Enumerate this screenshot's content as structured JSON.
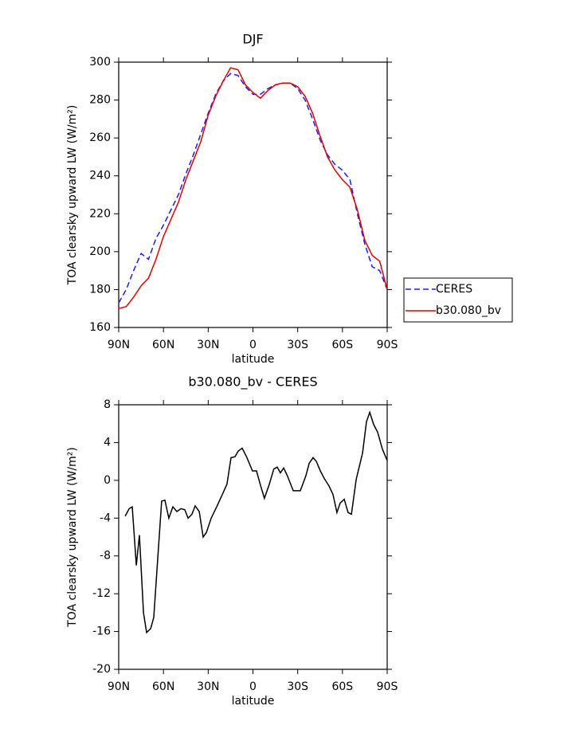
{
  "chart_data": [
    {
      "type": "line",
      "title": "DJF",
      "xlabel": "latitude",
      "ylabel": "TOA clearsky upward LW (W/m²)",
      "x": [
        90,
        85,
        80,
        75,
        70,
        65,
        60,
        55,
        50,
        45,
        40,
        35,
        30,
        25,
        20,
        15,
        10,
        5,
        0,
        -5,
        -10,
        -15,
        -20,
        -25,
        -30,
        -35,
        -40,
        -45,
        -50,
        -55,
        -60,
        -65,
        -70,
        -75,
        -80,
        -85,
        -90
      ],
      "series": [
        {
          "name": "CERES",
          "color": "#1a1aff",
          "line_style": "dashed",
          "values": [
            173,
            180,
            190,
            199,
            196,
            207,
            214,
            222,
            230,
            241,
            251,
            262,
            273,
            283,
            290,
            294,
            293,
            287,
            283,
            283,
            286,
            288,
            289,
            289,
            286,
            280,
            270,
            259,
            251,
            246,
            243,
            238,
            220,
            204,
            192,
            190,
            180
          ]
        },
        {
          "name": "b30.080_bv",
          "color": "#e00000",
          "line_style": "solid",
          "values": [
            170,
            171,
            176,
            182,
            186,
            196,
            208,
            217,
            226,
            238,
            248,
            258,
            272,
            282,
            290,
            297,
            296,
            288,
            284,
            281,
            285,
            288,
            289,
            289,
            287,
            282,
            273,
            261,
            250,
            243,
            238,
            234,
            222,
            206,
            198,
            195,
            180
          ]
        }
      ],
      "xlim": [
        90,
        -90
      ],
      "xticks": [
        {
          "value": 90,
          "label": "90N"
        },
        {
          "value": 60,
          "label": "60N"
        },
        {
          "value": 30,
          "label": "30N"
        },
        0,
        {
          "value": -30,
          "label": "30S"
        },
        {
          "value": -60,
          "label": "60S"
        },
        {
          "value": -90,
          "label": "90S"
        }
      ],
      "ylim": [
        160,
        300
      ],
      "yticks": [
        160,
        180,
        200,
        220,
        240,
        260,
        280,
        300
      ],
      "legend": "right"
    },
    {
      "type": "line",
      "title": "b30.080_bv - CERES",
      "xlabel": "latitude",
      "ylabel": "TOA clearsky upward LW (W/m²)",
      "x": [
        85.7,
        83,
        80.9,
        78.2,
        76.1,
        73.4,
        71.3,
        68.6,
        66.5,
        61.2,
        59,
        56.4,
        53.7,
        51,
        48.3,
        45.7,
        43.5,
        40.9,
        38.7,
        36,
        33.4,
        31.2,
        28,
        24.3,
        20,
        17.4,
        14.7,
        12,
        9.9,
        7.2,
        4,
        0.3,
        -2.4,
        -5,
        -7.7,
        -11,
        -14,
        -16.3,
        -18.4,
        -20.6,
        -23,
        -27,
        -31.8,
        -35.5,
        -37.7,
        -40.3,
        -42.5,
        -45.2,
        -47.8,
        -51,
        -53.7,
        -56.3,
        -58.5,
        -61.2,
        -63.8,
        -66,
        -69.2,
        -73.5,
        -76.1,
        -78.3,
        -81,
        -83.6,
        -86.8,
        -90
      ],
      "series": [
        {
          "color": "#000000",
          "line_style": "solid",
          "values": [
            -3.8,
            -3.0,
            -2.8,
            -9,
            -5.8,
            -14,
            -16.1,
            -15.7,
            -14.5,
            -2.2,
            -2.1,
            -4,
            -2.8,
            -3.3,
            -3,
            -3.1,
            -4,
            -3.6,
            -2.7,
            -3.3,
            -6,
            -5.5,
            -4,
            -2.8,
            -1.3,
            -0.4,
            2.4,
            2.5,
            3.1,
            3.4,
            2.4,
            1.0,
            1.0,
            -0.5,
            -1.9,
            -0.4,
            1.2,
            1.4,
            0.8,
            1.3,
            0.5,
            -1.1,
            -1.1,
            0.5,
            1.8,
            2.4,
            2.0,
            1.0,
            0.2,
            -0.6,
            -1.5,
            -3.4,
            -2.4,
            -2.0,
            -3.4,
            -3.6,
            0.1,
            2.9,
            6.2,
            7.2,
            5.9,
            5.1,
            3.3,
            2.1
          ]
        }
      ],
      "xlim": [
        90,
        -90
      ],
      "xticks": [
        {
          "value": 90,
          "label": "90N"
        },
        {
          "value": 60,
          "label": "60N"
        },
        {
          "value": 30,
          "label": "30N"
        },
        0,
        {
          "value": -30,
          "label": "30S"
        },
        {
          "value": -60,
          "label": "60S"
        },
        {
          "value": -90,
          "label": "90S"
        }
      ],
      "ylim": [
        -20,
        8
      ],
      "yticks": [
        -20,
        -16,
        -12,
        -8,
        -4,
        0,
        4,
        8
      ]
    }
  ]
}
